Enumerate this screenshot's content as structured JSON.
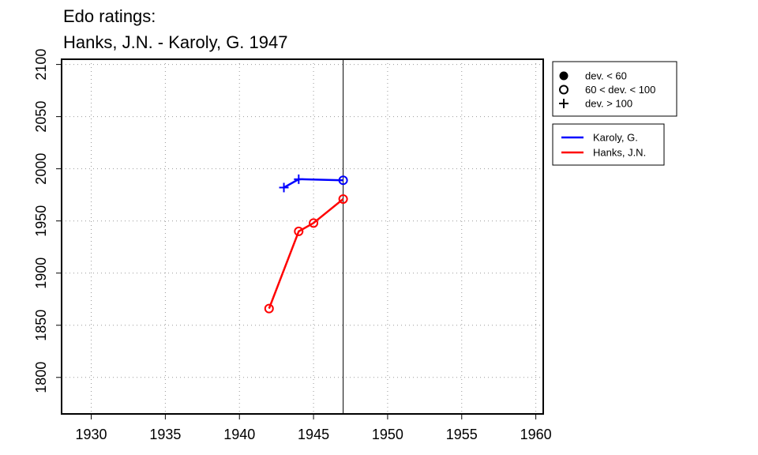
{
  "chart_data": {
    "type": "line",
    "title_line1": "Edo ratings:",
    "title_line2": "Hanks, J.N. - Karoly, G. 1947",
    "xlabel": "",
    "ylabel": "",
    "xlim": [
      1928,
      1960.5
    ],
    "ylim": [
      1765,
      2105
    ],
    "x_ticks": [
      1930,
      1935,
      1940,
      1945,
      1950,
      1955,
      1960
    ],
    "x_tick_labels": [
      "1930",
      "1935",
      "1940",
      "1945",
      "1950",
      "1955",
      "1960"
    ],
    "y_ticks": [
      1800,
      1850,
      1900,
      1950,
      2000,
      2050,
      2100
    ],
    "y_tick_labels": [
      "1800",
      "1850",
      "1900",
      "1950",
      "2000",
      "2050",
      "2100"
    ],
    "grid": true,
    "vline_x": 1947,
    "series": [
      {
        "name": "Karoly, G.",
        "color": "#0000ff",
        "points": [
          {
            "x": 1943,
            "y": 1982,
            "marker": "plus"
          },
          {
            "x": 1944,
            "y": 1990,
            "marker": "plus"
          },
          {
            "x": 1947,
            "y": 1989,
            "marker": "open-circle"
          }
        ]
      },
      {
        "name": "Hanks, J.N.",
        "color": "#ff0000",
        "points": [
          {
            "x": 1942,
            "y": 1866,
            "marker": "open-circle"
          },
          {
            "x": 1944,
            "y": 1940,
            "marker": "open-circle"
          },
          {
            "x": 1945,
            "y": 1948,
            "marker": "open-circle"
          },
          {
            "x": 1947,
            "y": 1971,
            "marker": "open-circle"
          }
        ]
      }
    ],
    "marker_legend": {
      "position": "top-right",
      "items": [
        {
          "symbol": "filled-circle",
          "label": "dev. < 60"
        },
        {
          "symbol": "open-circle",
          "label": "60 < dev. < 100"
        },
        {
          "symbol": "plus",
          "label": "dev. > 100"
        }
      ]
    },
    "series_legend": {
      "position": "right",
      "items": [
        {
          "label": "Karoly, G.",
          "color": "#0000ff"
        },
        {
          "label": "Hanks, J.N.",
          "color": "#ff0000"
        }
      ]
    }
  }
}
